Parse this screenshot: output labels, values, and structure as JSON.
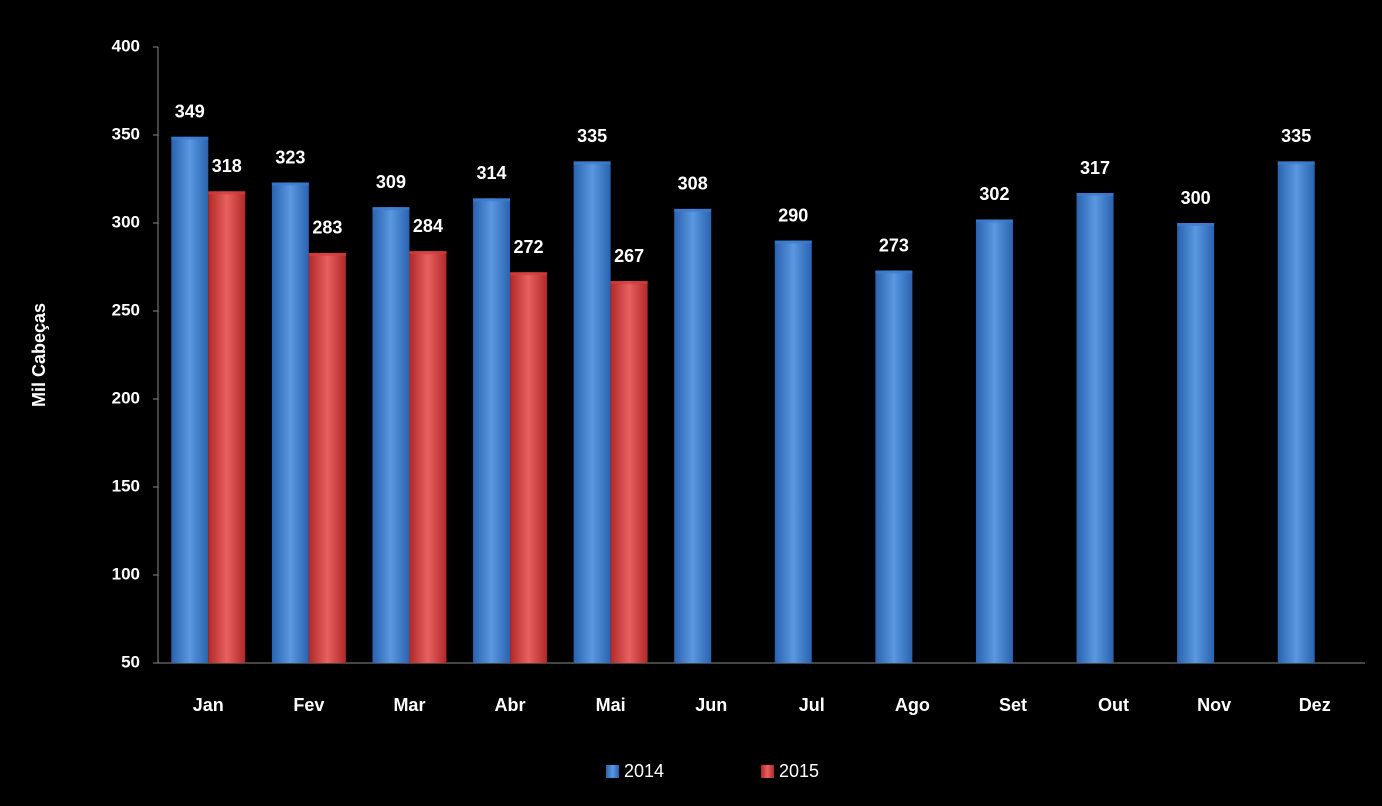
{
  "chart_data": {
    "type": "bar",
    "y_label": "Mil Cabeças",
    "categories": [
      "Jan",
      "Fev",
      "Mar",
      "Abr",
      "Mai",
      "Jun",
      "Jul",
      "Ago",
      "Set",
      "Out",
      "Nov",
      "Dez"
    ],
    "series": [
      {
        "name": "2014",
        "color": "#3a7bd0",
        "values": [
          349,
          323,
          309,
          314,
          335,
          308,
          290,
          273,
          302,
          317,
          300,
          335
        ]
      },
      {
        "name": "2015",
        "color": "#d43c3c",
        "values": [
          318,
          283,
          284,
          272,
          267,
          null,
          null,
          null,
          null,
          null,
          null,
          null
        ]
      }
    ],
    "ylim": [
      50,
      400
    ],
    "yticks": [
      50,
      100,
      150,
      200,
      250,
      300,
      350,
      400
    ],
    "legend": "bottom"
  }
}
